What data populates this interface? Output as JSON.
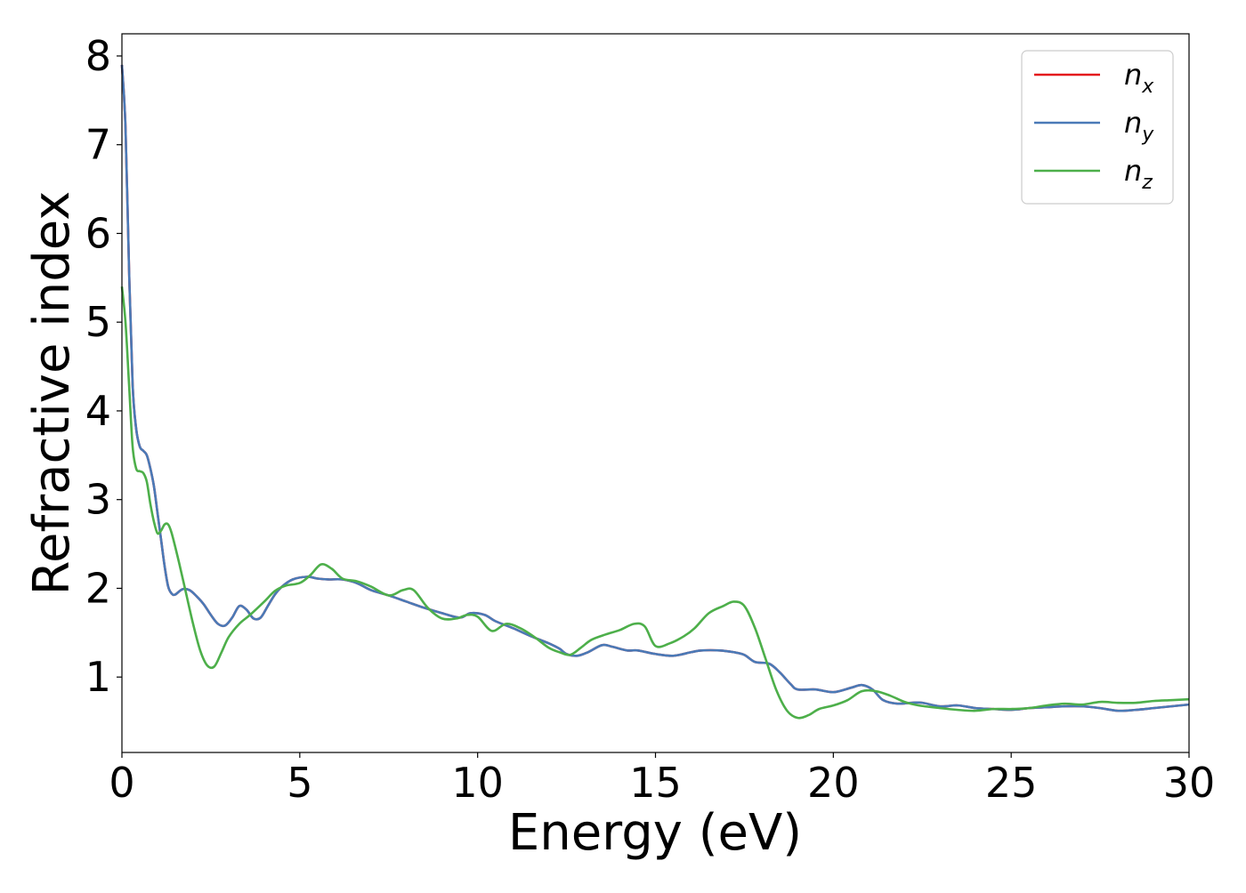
{
  "chart_data": {
    "type": "line",
    "xlabel": "Energy (eV)",
    "ylabel": "Refractive index",
    "xlim": [
      0,
      30
    ],
    "ylim": [
      0.15,
      8.25
    ],
    "xticks": [
      0,
      5,
      10,
      15,
      20,
      25,
      30
    ],
    "xtick_labels": [
      "0",
      "5",
      "10",
      "15",
      "20",
      "25",
      "30"
    ],
    "yticks": [
      1,
      2,
      3,
      4,
      5,
      6,
      7,
      8
    ],
    "ytick_labels": [
      "1",
      "2",
      "3",
      "4",
      "5",
      "6",
      "7",
      "8"
    ],
    "grid": false,
    "legend_position": "top-right",
    "series": [
      {
        "name": "n_x",
        "legend_base": "n",
        "legend_sub": "x",
        "color": "#e41a1c",
        "x": [
          0,
          0.1,
          0.2,
          0.3,
          0.4,
          0.5,
          0.6,
          0.7,
          0.8,
          0.9,
          1.0,
          1.1,
          1.2,
          1.3,
          1.4,
          1.5,
          1.7,
          1.9,
          2.1,
          2.3,
          2.5,
          2.7,
          2.9,
          3.1,
          3.3,
          3.5,
          3.7,
          3.9,
          4.1,
          4.3,
          4.5,
          4.8,
          5.2,
          5.5,
          5.8,
          6.2,
          6.6,
          7.0,
          7.5,
          8.0,
          8.5,
          9.0,
          9.5,
          9.8,
          10.2,
          10.5,
          11.0,
          11.5,
          12.0,
          12.3,
          12.5,
          12.8,
          13.1,
          13.5,
          13.8,
          14.2,
          14.5,
          15.0,
          15.5,
          16.0,
          16.3,
          16.8,
          17.2,
          17.5,
          17.8,
          18.2,
          18.5,
          18.8,
          19.0,
          19.5,
          20.0,
          20.5,
          20.8,
          21.1,
          21.4,
          21.8,
          22.2,
          22.5,
          23.0,
          23.5,
          24.0,
          24.5,
          25.0,
          25.5,
          26.0,
          26.5,
          27.0,
          27.5,
          28.0,
          28.5,
          29.0,
          29.5,
          30.0
        ],
        "values": [
          7.9,
          7.2,
          5.6,
          4.3,
          3.8,
          3.6,
          3.55,
          3.5,
          3.35,
          3.15,
          2.85,
          2.55,
          2.25,
          2.02,
          1.94,
          1.93,
          1.99,
          1.98,
          1.91,
          1.82,
          1.7,
          1.6,
          1.58,
          1.67,
          1.8,
          1.76,
          1.66,
          1.67,
          1.8,
          1.93,
          2.02,
          2.1,
          2.13,
          2.11,
          2.1,
          2.1,
          2.06,
          1.98,
          1.92,
          1.85,
          1.78,
          1.72,
          1.67,
          1.72,
          1.7,
          1.63,
          1.55,
          1.46,
          1.38,
          1.32,
          1.26,
          1.24,
          1.28,
          1.36,
          1.34,
          1.3,
          1.3,
          1.26,
          1.24,
          1.28,
          1.3,
          1.3,
          1.28,
          1.25,
          1.17,
          1.15,
          1.05,
          0.92,
          0.86,
          0.86,
          0.83,
          0.88,
          0.91,
          0.86,
          0.74,
          0.7,
          0.71,
          0.71,
          0.67,
          0.68,
          0.65,
          0.64,
          0.63,
          0.65,
          0.66,
          0.67,
          0.67,
          0.65,
          0.62,
          0.63,
          0.65,
          0.67,
          0.69
        ]
      },
      {
        "name": "n_y",
        "legend_base": "n",
        "legend_sub": "y",
        "color": "#4a7ab7",
        "x": [
          0,
          0.1,
          0.2,
          0.3,
          0.4,
          0.5,
          0.6,
          0.7,
          0.8,
          0.9,
          1.0,
          1.1,
          1.2,
          1.3,
          1.4,
          1.5,
          1.7,
          1.9,
          2.1,
          2.3,
          2.5,
          2.7,
          2.9,
          3.1,
          3.3,
          3.5,
          3.7,
          3.9,
          4.1,
          4.3,
          4.5,
          4.8,
          5.2,
          5.5,
          5.8,
          6.2,
          6.6,
          7.0,
          7.5,
          8.0,
          8.5,
          9.0,
          9.5,
          9.8,
          10.2,
          10.5,
          11.0,
          11.5,
          12.0,
          12.3,
          12.5,
          12.8,
          13.1,
          13.5,
          13.8,
          14.2,
          14.5,
          15.0,
          15.5,
          16.0,
          16.3,
          16.8,
          17.2,
          17.5,
          17.8,
          18.2,
          18.5,
          18.8,
          19.0,
          19.5,
          20.0,
          20.5,
          20.8,
          21.1,
          21.4,
          21.8,
          22.2,
          22.5,
          23.0,
          23.5,
          24.0,
          24.5,
          25.0,
          25.5,
          26.0,
          26.5,
          27.0,
          27.5,
          28.0,
          28.5,
          29.0,
          29.5,
          30.0
        ],
        "values": [
          7.9,
          7.2,
          5.6,
          4.3,
          3.8,
          3.6,
          3.55,
          3.5,
          3.35,
          3.15,
          2.85,
          2.55,
          2.25,
          2.02,
          1.94,
          1.93,
          1.99,
          1.98,
          1.91,
          1.82,
          1.7,
          1.6,
          1.58,
          1.67,
          1.8,
          1.76,
          1.66,
          1.67,
          1.8,
          1.93,
          2.02,
          2.1,
          2.13,
          2.11,
          2.1,
          2.1,
          2.06,
          1.98,
          1.92,
          1.85,
          1.78,
          1.72,
          1.67,
          1.72,
          1.7,
          1.63,
          1.55,
          1.46,
          1.38,
          1.32,
          1.26,
          1.24,
          1.28,
          1.36,
          1.34,
          1.3,
          1.3,
          1.26,
          1.24,
          1.28,
          1.3,
          1.3,
          1.28,
          1.25,
          1.17,
          1.15,
          1.05,
          0.92,
          0.86,
          0.86,
          0.83,
          0.88,
          0.91,
          0.86,
          0.74,
          0.7,
          0.71,
          0.71,
          0.67,
          0.68,
          0.65,
          0.64,
          0.63,
          0.65,
          0.66,
          0.67,
          0.67,
          0.65,
          0.62,
          0.63,
          0.65,
          0.67,
          0.69
        ]
      },
      {
        "name": "n_z",
        "legend_base": "n",
        "legend_sub": "z",
        "color": "#4daf4a",
        "x": [
          0,
          0.1,
          0.2,
          0.3,
          0.4,
          0.5,
          0.6,
          0.7,
          0.8,
          0.9,
          1.0,
          1.1,
          1.2,
          1.3,
          1.4,
          1.6,
          1.8,
          2.0,
          2.2,
          2.4,
          2.6,
          2.8,
          3.0,
          3.3,
          3.6,
          4.0,
          4.3,
          4.6,
          5.0,
          5.3,
          5.6,
          5.9,
          6.2,
          6.6,
          7.0,
          7.5,
          7.9,
          8.2,
          8.6,
          9.0,
          9.4,
          9.7,
          10.0,
          10.4,
          10.8,
          11.2,
          11.6,
          12.0,
          12.3,
          12.6,
          12.9,
          13.2,
          13.6,
          14.0,
          14.4,
          14.7,
          15.0,
          15.4,
          15.8,
          16.1,
          16.5,
          16.9,
          17.2,
          17.5,
          17.8,
          18.1,
          18.4,
          18.7,
          19.0,
          19.3,
          19.6,
          20.0,
          20.4,
          20.8,
          21.2,
          21.6,
          22.0,
          22.4,
          23.0,
          23.5,
          24.0,
          24.5,
          25.0,
          25.5,
          26.0,
          26.5,
          27.0,
          27.5,
          28.0,
          28.5,
          29.0,
          29.5,
          30.0
        ],
        "values": [
          5.4,
          5.0,
          4.3,
          3.6,
          3.35,
          3.32,
          3.3,
          3.2,
          2.95,
          2.75,
          2.62,
          2.65,
          2.72,
          2.72,
          2.62,
          2.3,
          1.95,
          1.6,
          1.3,
          1.13,
          1.12,
          1.28,
          1.45,
          1.6,
          1.7,
          1.85,
          1.97,
          2.03,
          2.06,
          2.15,
          2.27,
          2.22,
          2.11,
          2.08,
          2.02,
          1.92,
          1.98,
          1.98,
          1.78,
          1.66,
          1.66,
          1.7,
          1.68,
          1.52,
          1.6,
          1.55,
          1.45,
          1.33,
          1.28,
          1.25,
          1.33,
          1.42,
          1.48,
          1.53,
          1.6,
          1.57,
          1.35,
          1.38,
          1.46,
          1.55,
          1.72,
          1.8,
          1.85,
          1.8,
          1.55,
          1.2,
          0.85,
          0.62,
          0.54,
          0.57,
          0.64,
          0.68,
          0.74,
          0.84,
          0.84,
          0.79,
          0.72,
          0.68,
          0.65,
          0.63,
          0.62,
          0.64,
          0.64,
          0.65,
          0.68,
          0.7,
          0.69,
          0.72,
          0.71,
          0.71,
          0.73,
          0.74,
          0.75
        ]
      }
    ]
  }
}
